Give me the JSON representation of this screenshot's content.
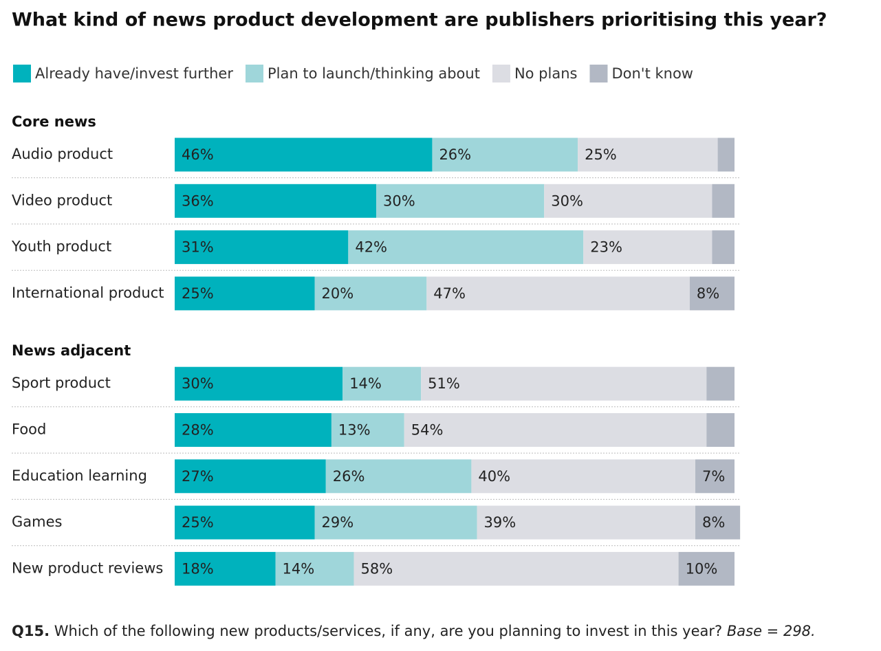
{
  "chart_data": {
    "type": "bar",
    "orientation": "horizontal",
    "stacked": true,
    "title": "What kind of news product development are publishers prioritising this year?",
    "xlim": [
      0,
      100
    ],
    "groups": [
      {
        "name": "Core news",
        "categories": [
          "Audio product",
          "Video product",
          "Youth product",
          "International product"
        ]
      },
      {
        "name": "News adjacent",
        "categories": [
          "Sport product",
          "Food",
          "Education learning",
          "Games",
          "New product reviews"
        ]
      }
    ],
    "series": [
      {
        "name": "Already have/invest further",
        "color": "#00b2bd",
        "label_color": "#ffffff",
        "values": [
          46,
          36,
          31,
          25,
          30,
          28,
          27,
          25,
          18
        ],
        "value_labels": [
          "46%",
          "36%",
          "31%",
          "25%",
          "30%",
          "28%",
          "27%",
          "25%",
          "18%"
        ]
      },
      {
        "name": "Plan to launch/thinking about",
        "color": "#9fd6da",
        "label_color": "#333333",
        "values": [
          26,
          30,
          42,
          20,
          14,
          13,
          26,
          29,
          14
        ],
        "value_labels": [
          "26%",
          "30%",
          "42%",
          "20%",
          "14%",
          "13%",
          "26%",
          "29%",
          "14%"
        ]
      },
      {
        "name": "No plans",
        "color": "#dcdde3",
        "label_color": "#333333",
        "values": [
          25,
          30,
          23,
          47,
          51,
          54,
          40,
          39,
          58
        ],
        "value_labels": [
          "25%",
          "30%",
          "23%",
          "47%",
          "51%",
          "54%",
          "40%",
          "39%",
          "58%"
        ]
      },
      {
        "name": "Don't know",
        "color": "#b2b8c4",
        "label_color": "#333333",
        "values": [
          3,
          4,
          4,
          8,
          5,
          5,
          7,
          8,
          10
        ],
        "value_labels": [
          null,
          null,
          null,
          "8%",
          null,
          null,
          "7%",
          "8%",
          "10%"
        ]
      }
    ],
    "note": {
      "label": "Q15.",
      "text": "Which of the following new products/services, if any, are you planning to invest in this year?",
      "base": "Base = 298."
    }
  }
}
